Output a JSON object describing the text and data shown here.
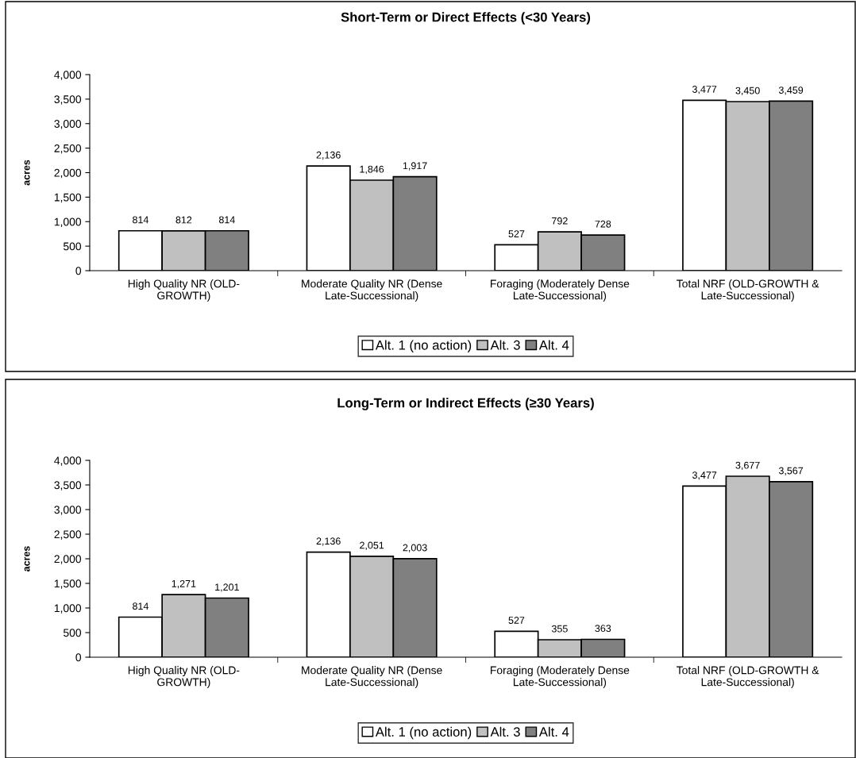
{
  "chart_data": [
    {
      "type": "bar",
      "title": "Short-Term or Direct Effects (<30 Years)",
      "ylabel": "acres",
      "categories": [
        "High Quality NR (OLD-\nGROWTH)",
        "Moderate Quality NR (Dense\nLate-Successional)",
        "Foraging (Moderately Dense\nLate-Successional)",
        "Total NRF (OLD-GROWTH &\nLate-Successional)"
      ],
      "series": [
        {
          "name": "Alt. 1 (no action)",
          "color": "#ffffff",
          "values": [
            814,
            2136,
            527,
            3477
          ],
          "value_labels": [
            "814",
            "2,136",
            "527",
            "3,477"
          ]
        },
        {
          "name": "Alt. 3",
          "color": "#c0c0c0",
          "values": [
            812,
            1846,
            792,
            3450
          ],
          "value_labels": [
            "812",
            "1,846",
            "792",
            "3,450"
          ]
        },
        {
          "name": "Alt. 4",
          "color": "#808080",
          "values": [
            814,
            1917,
            728,
            3459
          ],
          "value_labels": [
            "814",
            "1,917",
            "728",
            "3,459"
          ]
        }
      ],
      "ylim": [
        0,
        4000
      ],
      "yticks": [
        0,
        {
          "value": 500,
          "label": "500"
        },
        {
          "value": 1000,
          "label": "1,000"
        },
        {
          "value": 1500,
          "label": "1,500"
        },
        {
          "value": 2000,
          "label": "2,000"
        },
        {
          "value": 2500,
          "label": "2,500"
        },
        {
          "value": 3000,
          "label": "3,000"
        },
        {
          "value": 3500,
          "label": "3,500"
        },
        {
          "value": 4000,
          "label": "4,000"
        }
      ],
      "grid": false,
      "legend": "bottom"
    },
    {
      "type": "bar",
      "title": "Long-Term or Indirect Effects (≥30 Years)",
      "ylabel": "acres",
      "categories": [
        "High Quality NR (OLD-\nGROWTH)",
        "Moderate Quality NR (Dense\nLate-Successional)",
        "Foraging (Moderately Dense\nLate-Successional)",
        "Total NRF (OLD-GROWTH &\nLate-Successional)"
      ],
      "series": [
        {
          "name": "Alt. 1 (no action)",
          "color": "#ffffff",
          "values": [
            814,
            2136,
            527,
            3477
          ],
          "value_labels": [
            "814",
            "2,136",
            "527",
            "3,477"
          ]
        },
        {
          "name": "Alt. 3",
          "color": "#c0c0c0",
          "values": [
            1271,
            2051,
            355,
            3677
          ],
          "value_labels": [
            "1,271",
            "2,051",
            "355",
            "3,677"
          ]
        },
        {
          "name": "Alt. 4",
          "color": "#808080",
          "values": [
            1201,
            2003,
            363,
            3567
          ],
          "value_labels": [
            "1,201",
            "2,003",
            "363",
            "3,567"
          ]
        }
      ],
      "ylim": [
        0,
        4000
      ],
      "yticks": [
        0,
        {
          "value": 500,
          "label": "500"
        },
        {
          "value": 1000,
          "label": "1,000"
        },
        {
          "value": 1500,
          "label": "1,500"
        },
        {
          "value": 2000,
          "label": "2,000"
        },
        {
          "value": 2500,
          "label": "2,500"
        },
        {
          "value": 3000,
          "label": "3,000"
        },
        {
          "value": 3500,
          "label": "3,500"
        },
        {
          "value": 4000,
          "label": "4,000"
        }
      ],
      "grid": false,
      "legend": "bottom"
    }
  ]
}
